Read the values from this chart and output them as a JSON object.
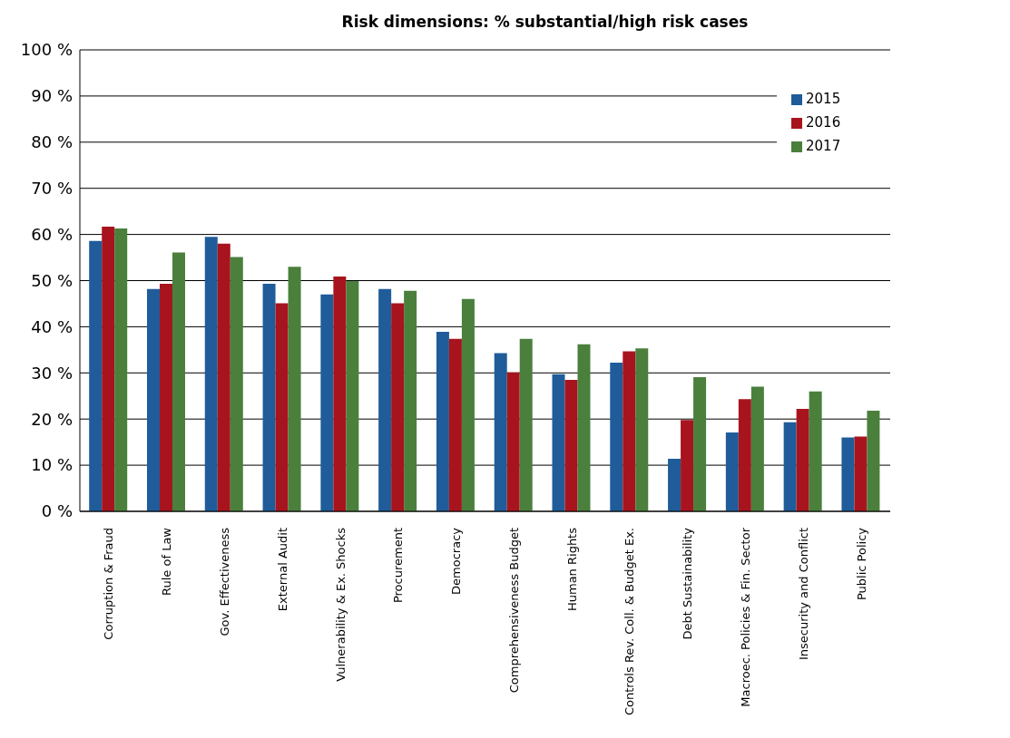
{
  "chart_data": {
    "type": "bar",
    "title": "Risk dimensions: % substantial/high risk cases",
    "categories": [
      "Corruption & Fraud",
      "Rule of Law",
      "Gov. Effectiveness",
      "External Audit",
      "Vulnerability & Ex. Shocks",
      "Procurement",
      "Democracy",
      "Comprehensiveness Budget",
      "Human Rights",
      "Controls Rev. Coll. & Budget Ex.",
      "Debt Sustainability",
      "Macroec. Policies & Fin. Sector",
      "Insecurity and Conflict",
      "Public Policy"
    ],
    "series": [
      {
        "name": "2015",
        "color": "#1f5c99",
        "values": [
          58.6,
          48.2,
          59.5,
          49.3,
          47.0,
          48.2,
          38.9,
          34.3,
          29.7,
          32.2,
          11.4,
          17.1,
          19.3,
          16.0
        ]
      },
      {
        "name": "2016",
        "color": "#a8141e",
        "values": [
          61.7,
          49.3,
          58.0,
          45.1,
          50.9,
          45.1,
          37.4,
          30.1,
          28.5,
          34.7,
          19.8,
          24.3,
          22.2,
          16.2
        ]
      },
      {
        "name": "2017",
        "color": "#4a7f3c",
        "values": [
          61.3,
          56.1,
          55.1,
          53.0,
          49.9,
          47.8,
          46.0,
          37.4,
          36.2,
          35.3,
          29.1,
          27.0,
          26.0,
          21.8
        ]
      }
    ],
    "ylim": [
      0,
      100
    ],
    "yticks": [
      {
        "value": 0,
        "label": "0 %"
      },
      {
        "value": 10,
        "label": "10 %"
      },
      {
        "value": 20,
        "label": "20 %"
      },
      {
        "value": 30,
        "label": "30 %"
      },
      {
        "value": 40,
        "label": "40 %"
      },
      {
        "value": 50,
        "label": "50 %"
      },
      {
        "value": 60,
        "label": "60 %"
      },
      {
        "value": 70,
        "label": "70 %"
      },
      {
        "value": 80,
        "label": "80 %"
      },
      {
        "value": 90,
        "label": "90 %"
      },
      {
        "value": 100,
        "label": "100 %"
      }
    ],
    "grid": "y",
    "legend": "top right"
  }
}
